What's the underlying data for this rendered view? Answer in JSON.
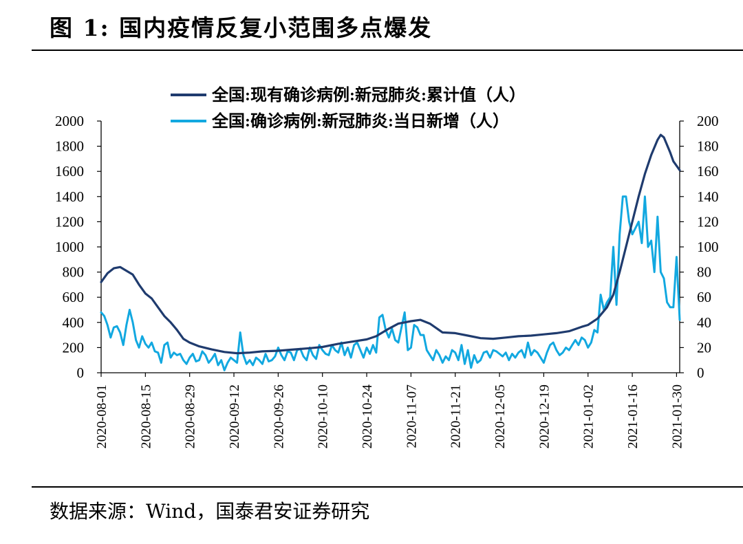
{
  "header": {
    "figure_title": "图 1:  国内疫情反复小范围多点爆发"
  },
  "footer": {
    "source_text": "数据来源：Wind，国泰君安证券研究"
  },
  "colors": {
    "cumulative": "#1f3b6e",
    "daily": "#12a8e0",
    "axis": "#000000"
  },
  "chart_data": {
    "type": "line",
    "title": "",
    "x_tick_labels": [
      "2020-08-01",
      "2020-08-15",
      "2020-08-29",
      "2020-09-12",
      "2020-09-26",
      "2020-10-10",
      "2020-10-24",
      "2020-11-07",
      "2020-11-21",
      "2020-12-05",
      "2020-12-19",
      "2021-01-02",
      "2021-01-16",
      "2021-01-30"
    ],
    "x_range": [
      "2020-08-01",
      "2021-01-31"
    ],
    "y_left": {
      "range": [
        0,
        2000
      ],
      "ticks": [
        "0",
        "200",
        "400",
        "600",
        "800",
        "1000",
        "1200",
        "1400",
        "1600",
        "1800",
        "2000"
      ]
    },
    "y_right": {
      "range": [
        0,
        200
      ],
      "ticks": [
        "0",
        "20",
        "40",
        "60",
        "80",
        "100",
        "120",
        "140",
        "160",
        "180",
        "200"
      ]
    },
    "legend_position": "top-center",
    "series": [
      {
        "name": "全国:现有确诊病例:新冠肺炎:累计值（人）",
        "axis": "left",
        "color": "#1f3b6e",
        "points": [
          [
            "2020-08-01",
            720
          ],
          [
            "2020-08-03",
            790
          ],
          [
            "2020-08-05",
            830
          ],
          [
            "2020-08-07",
            840
          ],
          [
            "2020-08-09",
            810
          ],
          [
            "2020-08-11",
            780
          ],
          [
            "2020-08-13",
            700
          ],
          [
            "2020-08-15",
            630
          ],
          [
            "2020-08-17",
            590
          ],
          [
            "2020-08-19",
            520
          ],
          [
            "2020-08-21",
            450
          ],
          [
            "2020-08-23",
            400
          ],
          [
            "2020-08-25",
            340
          ],
          [
            "2020-08-27",
            270
          ],
          [
            "2020-08-29",
            240
          ],
          [
            "2020-09-01",
            210
          ],
          [
            "2020-09-05",
            185
          ],
          [
            "2020-09-09",
            165
          ],
          [
            "2020-09-13",
            155
          ],
          [
            "2020-09-17",
            160
          ],
          [
            "2020-09-21",
            170
          ],
          [
            "2020-09-26",
            175
          ],
          [
            "2020-10-01",
            185
          ],
          [
            "2020-10-06",
            195
          ],
          [
            "2020-10-10",
            205
          ],
          [
            "2020-10-15",
            230
          ],
          [
            "2020-10-20",
            250
          ],
          [
            "2020-10-24",
            265
          ],
          [
            "2020-10-27",
            290
          ],
          [
            "2020-10-31",
            350
          ],
          [
            "2020-11-03",
            390
          ],
          [
            "2020-11-07",
            410
          ],
          [
            "2020-11-10",
            420
          ],
          [
            "2020-11-13",
            390
          ],
          [
            "2020-11-17",
            320
          ],
          [
            "2020-11-21",
            315
          ],
          [
            "2020-11-25",
            295
          ],
          [
            "2020-11-29",
            275
          ],
          [
            "2020-12-03",
            270
          ],
          [
            "2020-12-07",
            280
          ],
          [
            "2020-12-11",
            290
          ],
          [
            "2020-12-15",
            295
          ],
          [
            "2020-12-19",
            305
          ],
          [
            "2020-12-23",
            315
          ],
          [
            "2020-12-27",
            330
          ],
          [
            "2020-12-31",
            365
          ],
          [
            "2021-01-02",
            380
          ],
          [
            "2021-01-05",
            430
          ],
          [
            "2021-01-08",
            520
          ],
          [
            "2021-01-10",
            620
          ],
          [
            "2021-01-12",
            800
          ],
          [
            "2021-01-14",
            1000
          ],
          [
            "2021-01-16",
            1200
          ],
          [
            "2021-01-18",
            1400
          ],
          [
            "2021-01-20",
            1580
          ],
          [
            "2021-01-22",
            1730
          ],
          [
            "2021-01-24",
            1850
          ],
          [
            "2021-01-25",
            1890
          ],
          [
            "2021-01-26",
            1870
          ],
          [
            "2021-01-27",
            1810
          ],
          [
            "2021-01-28",
            1750
          ],
          [
            "2021-01-29",
            1680
          ],
          [
            "2021-01-31",
            1610
          ]
        ]
      },
      {
        "name": "全国:确诊病例:新冠肺炎:当日新增（人）",
        "axis": "right",
        "color": "#12a8e0",
        "points": [
          [
            "2020-08-01",
            48
          ],
          [
            "2020-08-02",
            45
          ],
          [
            "2020-08-03",
            38
          ],
          [
            "2020-08-04",
            28
          ],
          [
            "2020-08-05",
            36
          ],
          [
            "2020-08-06",
            37
          ],
          [
            "2020-08-07",
            32
          ],
          [
            "2020-08-08",
            22
          ],
          [
            "2020-08-09",
            38
          ],
          [
            "2020-08-10",
            50
          ],
          [
            "2020-08-11",
            40
          ],
          [
            "2020-08-12",
            26
          ],
          [
            "2020-08-13",
            20
          ],
          [
            "2020-08-14",
            29
          ],
          [
            "2020-08-15",
            23
          ],
          [
            "2020-08-16",
            20
          ],
          [
            "2020-08-17",
            24
          ],
          [
            "2020-08-18",
            17
          ],
          [
            "2020-08-19",
            16
          ],
          [
            "2020-08-20",
            8
          ],
          [
            "2020-08-21",
            22
          ],
          [
            "2020-08-22",
            24
          ],
          [
            "2020-08-23",
            12
          ],
          [
            "2020-08-24",
            16
          ],
          [
            "2020-08-25",
            14
          ],
          [
            "2020-08-26",
            15
          ],
          [
            "2020-08-27",
            10
          ],
          [
            "2020-08-28",
            7
          ],
          [
            "2020-08-29",
            12
          ],
          [
            "2020-08-30",
            15
          ],
          [
            "2020-08-31",
            9
          ],
          [
            "2020-09-01",
            10
          ],
          [
            "2020-09-02",
            17
          ],
          [
            "2020-09-03",
            14
          ],
          [
            "2020-09-04",
            8
          ],
          [
            "2020-09-05",
            11
          ],
          [
            "2020-09-06",
            15
          ],
          [
            "2020-09-07",
            6
          ],
          [
            "2020-09-08",
            10
          ],
          [
            "2020-09-09",
            2
          ],
          [
            "2020-09-10",
            8
          ],
          [
            "2020-09-11",
            12
          ],
          [
            "2020-09-12",
            10
          ],
          [
            "2020-09-13",
            8
          ],
          [
            "2020-09-14",
            32
          ],
          [
            "2020-09-15",
            14
          ],
          [
            "2020-09-16",
            7
          ],
          [
            "2020-09-17",
            10
          ],
          [
            "2020-09-18",
            6
          ],
          [
            "2020-09-19",
            12
          ],
          [
            "2020-09-20",
            10
          ],
          [
            "2020-09-21",
            7
          ],
          [
            "2020-09-22",
            15
          ],
          [
            "2020-09-23",
            9
          ],
          [
            "2020-09-24",
            10
          ],
          [
            "2020-09-25",
            13
          ],
          [
            "2020-09-26",
            20
          ],
          [
            "2020-09-27",
            14
          ],
          [
            "2020-09-28",
            10
          ],
          [
            "2020-09-29",
            17
          ],
          [
            "2020-09-30",
            16
          ],
          [
            "2020-10-01",
            10
          ],
          [
            "2020-10-02",
            18
          ],
          [
            "2020-10-03",
            19
          ],
          [
            "2020-10-04",
            13
          ],
          [
            "2020-10-05",
            10
          ],
          [
            "2020-10-06",
            20
          ],
          [
            "2020-10-07",
            14
          ],
          [
            "2020-10-08",
            11
          ],
          [
            "2020-10-09",
            22
          ],
          [
            "2020-10-10",
            18
          ],
          [
            "2020-10-11",
            15
          ],
          [
            "2020-10-12",
            14
          ],
          [
            "2020-10-13",
            22
          ],
          [
            "2020-10-14",
            18
          ],
          [
            "2020-10-15",
            16
          ],
          [
            "2020-10-16",
            24
          ],
          [
            "2020-10-17",
            14
          ],
          [
            "2020-10-18",
            20
          ],
          [
            "2020-10-19",
            12
          ],
          [
            "2020-10-20",
            22
          ],
          [
            "2020-10-21",
            24
          ],
          [
            "2020-10-22",
            18
          ],
          [
            "2020-10-23",
            12
          ],
          [
            "2020-10-24",
            20
          ],
          [
            "2020-10-25",
            15
          ],
          [
            "2020-10-26",
            22
          ],
          [
            "2020-10-27",
            16
          ],
          [
            "2020-10-28",
            44
          ],
          [
            "2020-10-29",
            46
          ],
          [
            "2020-10-30",
            34
          ],
          [
            "2020-10-31",
            28
          ],
          [
            "2020-11-01",
            35
          ],
          [
            "2020-11-02",
            26
          ],
          [
            "2020-11-03",
            24
          ],
          [
            "2020-11-04",
            36
          ],
          [
            "2020-11-05",
            48
          ],
          [
            "2020-11-06",
            18
          ],
          [
            "2020-11-07",
            20
          ],
          [
            "2020-11-08",
            38
          ],
          [
            "2020-11-09",
            36
          ],
          [
            "2020-11-10",
            30
          ],
          [
            "2020-11-11",
            30
          ],
          [
            "2020-11-12",
            18
          ],
          [
            "2020-11-13",
            14
          ],
          [
            "2020-11-14",
            10
          ],
          [
            "2020-11-15",
            18
          ],
          [
            "2020-11-16",
            14
          ],
          [
            "2020-11-17",
            8
          ],
          [
            "2020-11-18",
            13
          ],
          [
            "2020-11-19",
            10
          ],
          [
            "2020-11-20",
            18
          ],
          [
            "2020-11-21",
            16
          ],
          [
            "2020-11-22",
            10
          ],
          [
            "2020-11-23",
            22
          ],
          [
            "2020-11-24",
            7
          ],
          [
            "2020-11-25",
            18
          ],
          [
            "2020-11-26",
            4
          ],
          [
            "2020-11-27",
            14
          ],
          [
            "2020-11-28",
            8
          ],
          [
            "2020-11-29",
            10
          ],
          [
            "2020-11-30",
            16
          ],
          [
            "2020-12-01",
            17
          ],
          [
            "2020-12-02",
            12
          ],
          [
            "2020-12-03",
            18
          ],
          [
            "2020-12-04",
            17
          ],
          [
            "2020-12-05",
            15
          ],
          [
            "2020-12-06",
            13
          ],
          [
            "2020-12-07",
            16
          ],
          [
            "2020-12-08",
            10
          ],
          [
            "2020-12-09",
            15
          ],
          [
            "2020-12-10",
            12
          ],
          [
            "2020-12-11",
            16
          ],
          [
            "2020-12-12",
            18
          ],
          [
            "2020-12-13",
            12
          ],
          [
            "2020-12-14",
            24
          ],
          [
            "2020-12-15",
            14
          ],
          [
            "2020-12-16",
            18
          ],
          [
            "2020-12-17",
            16
          ],
          [
            "2020-12-18",
            12
          ],
          [
            "2020-12-19",
            8
          ],
          [
            "2020-12-20",
            16
          ],
          [
            "2020-12-21",
            22
          ],
          [
            "2020-12-22",
            24
          ],
          [
            "2020-12-23",
            18
          ],
          [
            "2020-12-24",
            14
          ],
          [
            "2020-12-25",
            16
          ],
          [
            "2020-12-26",
            20
          ],
          [
            "2020-12-27",
            18
          ],
          [
            "2020-12-28",
            22
          ],
          [
            "2020-12-29",
            26
          ],
          [
            "2020-12-30",
            22
          ],
          [
            "2020-12-31",
            28
          ],
          [
            "2021-01-01",
            26
          ],
          [
            "2021-01-02",
            20
          ],
          [
            "2021-01-03",
            24
          ],
          [
            "2021-01-04",
            34
          ],
          [
            "2021-01-05",
            32
          ],
          [
            "2021-01-06",
            62
          ],
          [
            "2021-01-07",
            50
          ],
          [
            "2021-01-08",
            56
          ],
          [
            "2021-01-09",
            60
          ],
          [
            "2021-01-10",
            100
          ],
          [
            "2021-01-11",
            54
          ],
          [
            "2021-01-12",
            110
          ],
          [
            "2021-01-13",
            140
          ],
          [
            "2021-01-14",
            140
          ],
          [
            "2021-01-15",
            120
          ],
          [
            "2021-01-16",
            110
          ],
          [
            "2021-01-17",
            115
          ],
          [
            "2021-01-18",
            120
          ],
          [
            "2021-01-19",
            103
          ],
          [
            "2021-01-20",
            140
          ],
          [
            "2021-01-21",
            100
          ],
          [
            "2021-01-22",
            105
          ],
          [
            "2021-01-23",
            80
          ],
          [
            "2021-01-24",
            124
          ],
          [
            "2021-01-25",
            80
          ],
          [
            "2021-01-26",
            75
          ],
          [
            "2021-01-27",
            56
          ],
          [
            "2021-01-28",
            52
          ],
          [
            "2021-01-29",
            52
          ],
          [
            "2021-01-30",
            92
          ],
          [
            "2021-01-31",
            42
          ]
        ]
      }
    ]
  }
}
